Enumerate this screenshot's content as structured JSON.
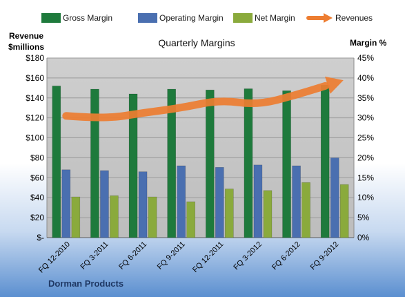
{
  "chart_data": {
    "type": "bar",
    "title": "Quarterly Margins",
    "left_axis_label": [
      "Revenue",
      "$millions"
    ],
    "right_axis_label": "Margin %",
    "company": "Dorman Products",
    "categories": [
      "FQ 12-2010",
      "FQ 3-2011",
      "FQ 6-2011",
      "FQ 9-2011",
      "FQ 12-2011",
      "FQ 3-2012",
      "FQ 6-2012",
      "FQ 9-2012"
    ],
    "series": [
      {
        "name": "Gross Margin",
        "axis": "right",
        "type": "bar",
        "color": "#1e7a3c",
        "values": [
          38.0,
          37.2,
          36.0,
          37.2,
          37.0,
          37.3,
          36.8,
          38.2
        ]
      },
      {
        "name": "Operating Margin",
        "axis": "right",
        "type": "bar",
        "color": "#4a6fb0",
        "values": [
          17.0,
          16.8,
          16.5,
          18.0,
          17.6,
          18.2,
          18.0,
          20.0
        ]
      },
      {
        "name": "Net Margin",
        "axis": "right",
        "type": "bar",
        "color": "#8aaa3c",
        "values": [
          10.2,
          10.5,
          10.2,
          9.0,
          12.2,
          11.8,
          13.8,
          13.3
        ]
      },
      {
        "name": "Revenues",
        "axis": "left",
        "type": "line",
        "color": "#ed7d31",
        "values": [
          122,
          119,
          125,
          130,
          138,
          133,
          143,
          155
        ]
      }
    ],
    "left_axis": {
      "min": 0,
      "max": 180,
      "step": 20,
      "tick_labels": [
        "$-",
        "$20",
        "$40",
        "$60",
        "$80",
        "$100",
        "$120",
        "$140",
        "$160",
        "$180"
      ]
    },
    "right_axis": {
      "min": 0,
      "max": 45,
      "step": 5,
      "tick_labels": [
        "0%",
        "5%",
        "10%",
        "15%",
        "20%",
        "25%",
        "30%",
        "35%",
        "40%",
        "45%"
      ]
    },
    "grid": true,
    "legend_position": "top"
  }
}
